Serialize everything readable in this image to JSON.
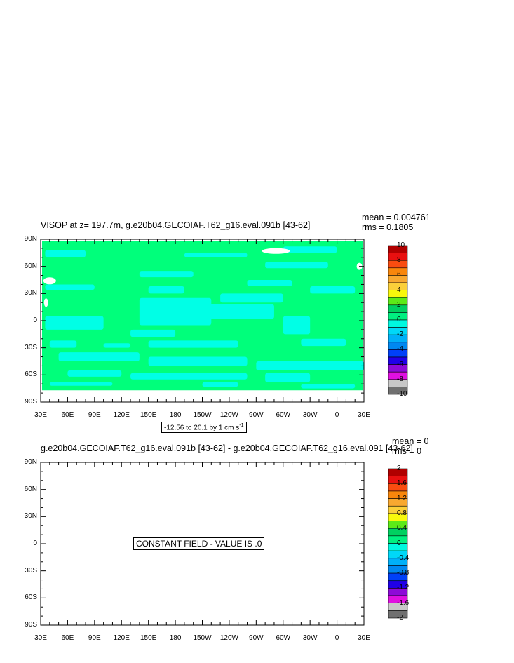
{
  "chart_data": [
    {
      "type": "heatmap",
      "title": "VISOP at z= 197.7m, g.e20b04.GECOIAF.T62_g16.eval.091b [43-62]",
      "stats": [
        "mean = 0.004761",
        "rms = 0.1805"
      ],
      "x_ticks": [
        "30E",
        "60E",
        "90E",
        "120E",
        "150E",
        "180",
        "150W",
        "120W",
        "90W",
        "60W",
        "30W",
        "0",
        "30E"
      ],
      "y_ticks": [
        "90N",
        "60N",
        "30N",
        "0",
        "30S",
        "60S",
        "90S"
      ],
      "xlim": [
        30,
        390
      ],
      "ylim": [
        -90,
        90
      ],
      "field_note": "-12.56 to 20.1 by 1 cm s",
      "field_note_sup": "-1",
      "colorbar": {
        "levels": [
          "10",
          "8",
          "6",
          "4",
          "2",
          "0",
          "-2",
          "-4",
          "-6",
          "-8",
          "-10"
        ],
        "colors": [
          "#b00000",
          "#e81010",
          "#f84c10",
          "#f8860c",
          "#f8a830",
          "#fbcf3a",
          "#f8f80c",
          "#5cea18",
          "#00d060",
          "#00f080",
          "#00f8e0",
          "#00d8f8",
          "#00b0f8",
          "#0088f0",
          "#0040f8",
          "#2000e8",
          "#8e0ad8",
          "#e010e0",
          "#c8c8c8",
          "#707070"
        ]
      },
      "field_colors": {
        "land_ocean_base": "#00ff7b",
        "negative": "#00ffe6",
        "missing": "#ffffff"
      }
    },
    {
      "type": "heatmap",
      "title": "g.e20b04.GECOIAF.T62_g16.eval.091b [43-62] - g.e20b04.GECOIAF.T62_g16.eval.091 [43-62]",
      "stats": [
        "mean = 0",
        "rms = 0"
      ],
      "x_ticks": [
        "30E",
        "60E",
        "90E",
        "120E",
        "150E",
        "180",
        "150W",
        "120W",
        "90W",
        "60W",
        "30W",
        "0",
        "30E"
      ],
      "y_ticks": [
        "90N",
        "60N",
        "30N",
        "0",
        "30S",
        "60S",
        "90S"
      ],
      "xlim": [
        30,
        390
      ],
      "ylim": [
        -90,
        90
      ],
      "field_note": "CONSTANT FIELD - VALUE IS .0",
      "colorbar": {
        "levels": [
          "2",
          "1.6",
          "1.2",
          "0.8",
          "0.4",
          "0",
          "-0.4",
          "-0.8",
          "-1.2",
          "-1.6",
          "-2"
        ],
        "colors": [
          "#b00000",
          "#e81010",
          "#f84c10",
          "#f8860c",
          "#f8a830",
          "#fbcf3a",
          "#f8f80c",
          "#5cea18",
          "#00d060",
          "#00f080",
          "#00f8e0",
          "#00d8f8",
          "#00b0f8",
          "#0088f0",
          "#0040f8",
          "#2000e8",
          "#8e0ad8",
          "#e010e0",
          "#c8c8c8",
          "#707070"
        ]
      }
    }
  ]
}
